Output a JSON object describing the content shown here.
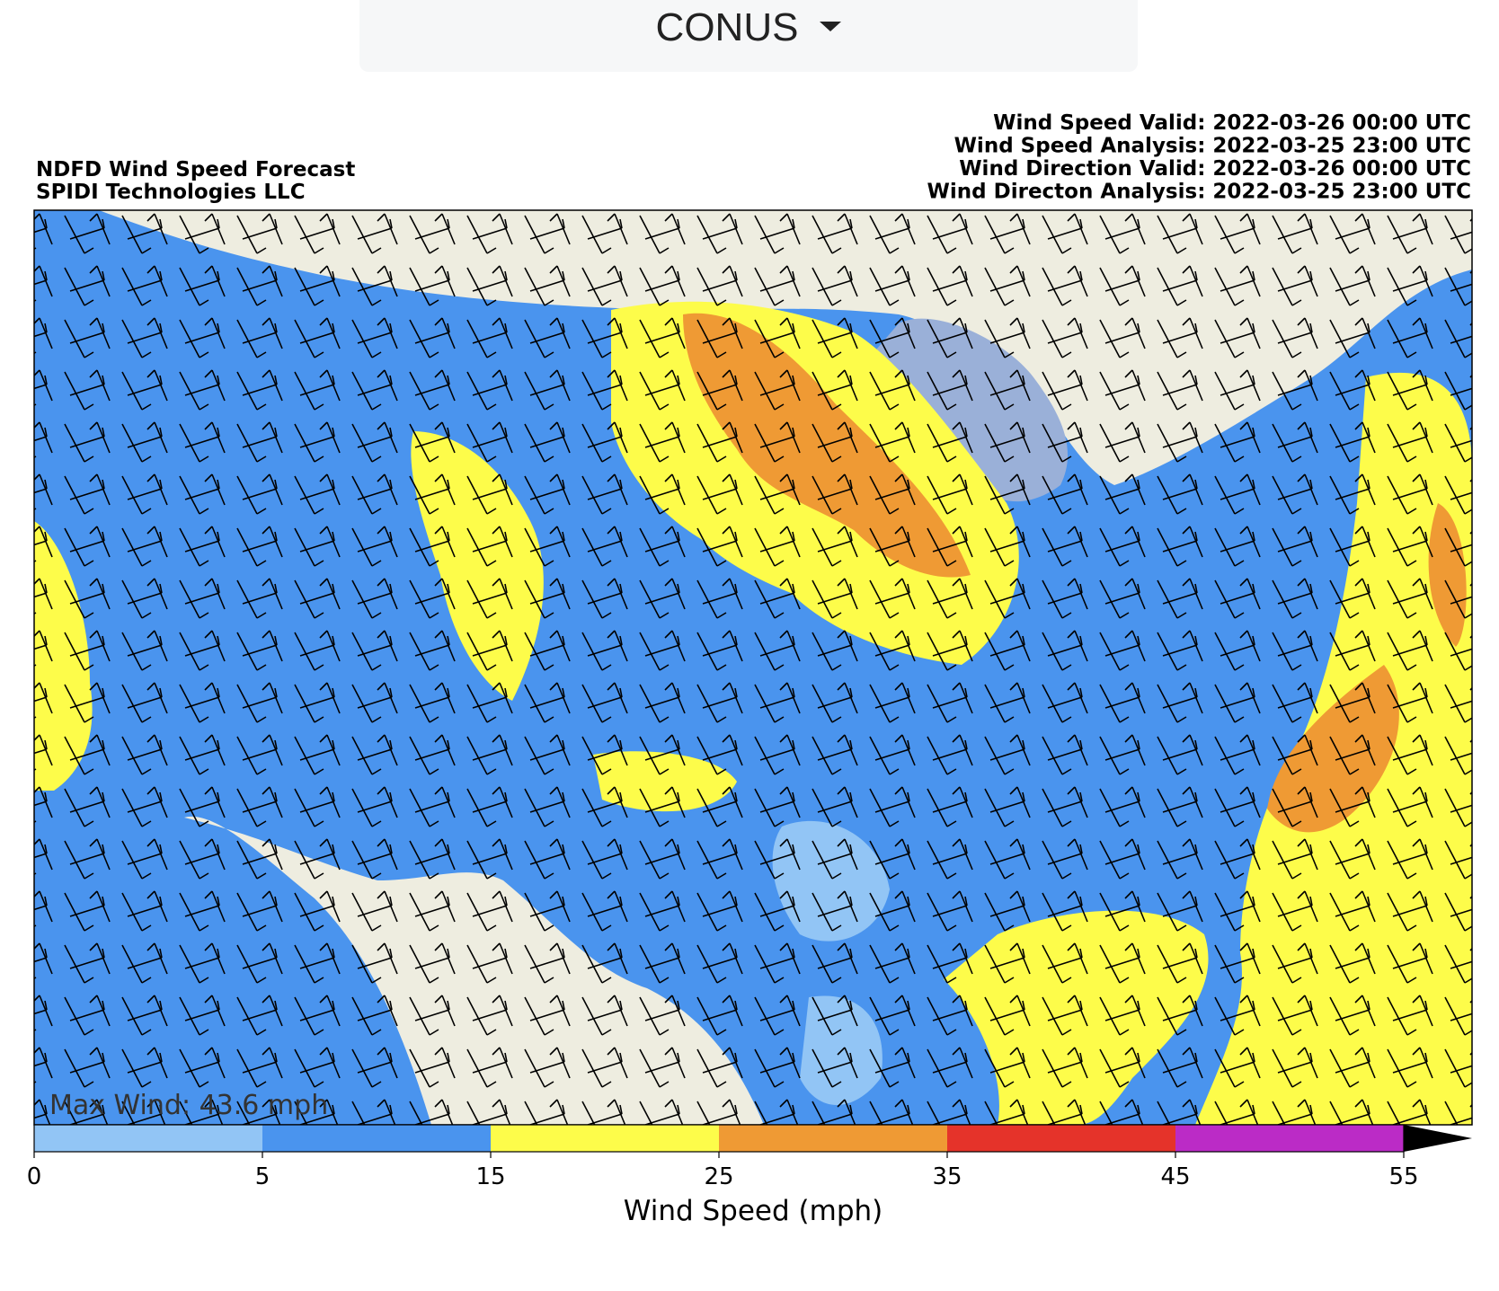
{
  "dropdown": {
    "label": "CONUS"
  },
  "header": {
    "title": "NDFD Wind Speed Forecast",
    "credit": "SPIDI Technologies LLC",
    "times": [
      "Wind Speed Valid: 2022-03-26 00:00 UTC",
      "Wind Speed Analysis: 2022-03-25 23:00 UTC",
      "Wind Direction Valid: 2022-03-26 00:00 UTC",
      "Wind Directon Analysis: 2022-03-25 23:00 UTC"
    ]
  },
  "map": {
    "annotation": "Max Wind: 43.6 mph"
  },
  "colorbar": {
    "bounds": [
      0,
      5,
      15,
      25,
      35,
      45,
      55
    ],
    "colors": [
      "#92c5f5",
      "#4a94ee",
      "#fdfc4a",
      "#ef9a34",
      "#e5332a",
      "#bb2bc6"
    ],
    "extend_color": "#000000",
    "label": "Wind Speed (mph)"
  }
}
